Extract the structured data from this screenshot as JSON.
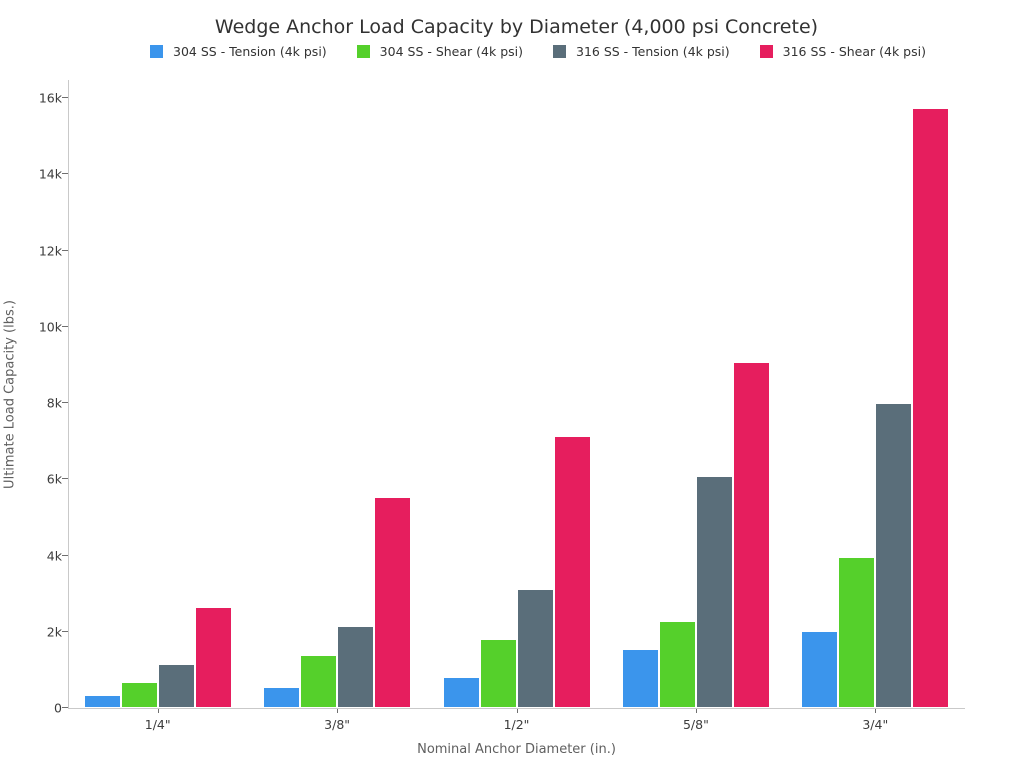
{
  "title": "Wedge Anchor Load Capacity by Diameter (4,000 psi Concrete)",
  "chart_data": {
    "type": "bar",
    "title": "Wedge Anchor Load Capacity by Diameter (4,000 psi Concrete)",
    "xlabel": "Nominal Anchor Diameter (in.)",
    "ylabel": "Ultimate Load Capacity (lbs.)",
    "categories": [
      "1/4\"",
      "3/8\"",
      "1/2\"",
      "5/8\"",
      "3/4\""
    ],
    "series": [
      {
        "name": "304 SS - Tension (4k psi)",
        "color": "#3B95EC",
        "values": [
          280,
          510,
          760,
          1490,
          1960
        ]
      },
      {
        "name": "304 SS - Shear (4k psi)",
        "color": "#55D02B",
        "values": [
          630,
          1340,
          1750,
          2230,
          3900
        ]
      },
      {
        "name": "316 SS - Tension (4k psi)",
        "color": "#5A6E7A",
        "values": [
          1090,
          2110,
          3060,
          6040,
          7940
        ]
      },
      {
        "name": "316 SS - Shear (4k psi)",
        "color": "#E61E5E",
        "values": [
          2600,
          5480,
          7080,
          9030,
          15690
        ]
      }
    ],
    "ylim": [
      0,
      16000
    ],
    "yticks": [
      0,
      2000,
      4000,
      6000,
      8000,
      10000,
      12000,
      14000,
      16000
    ],
    "ytick_labels": [
      "0",
      "2k",
      "4k",
      "6k",
      "8k",
      "10k",
      "12k",
      "14k",
      "16k"
    ],
    "grid": false,
    "legend_position": "top-center",
    "axis_color": "#c9c9c9",
    "tick_color": "#6f6f6f",
    "text_color": "#3c3c3c"
  }
}
